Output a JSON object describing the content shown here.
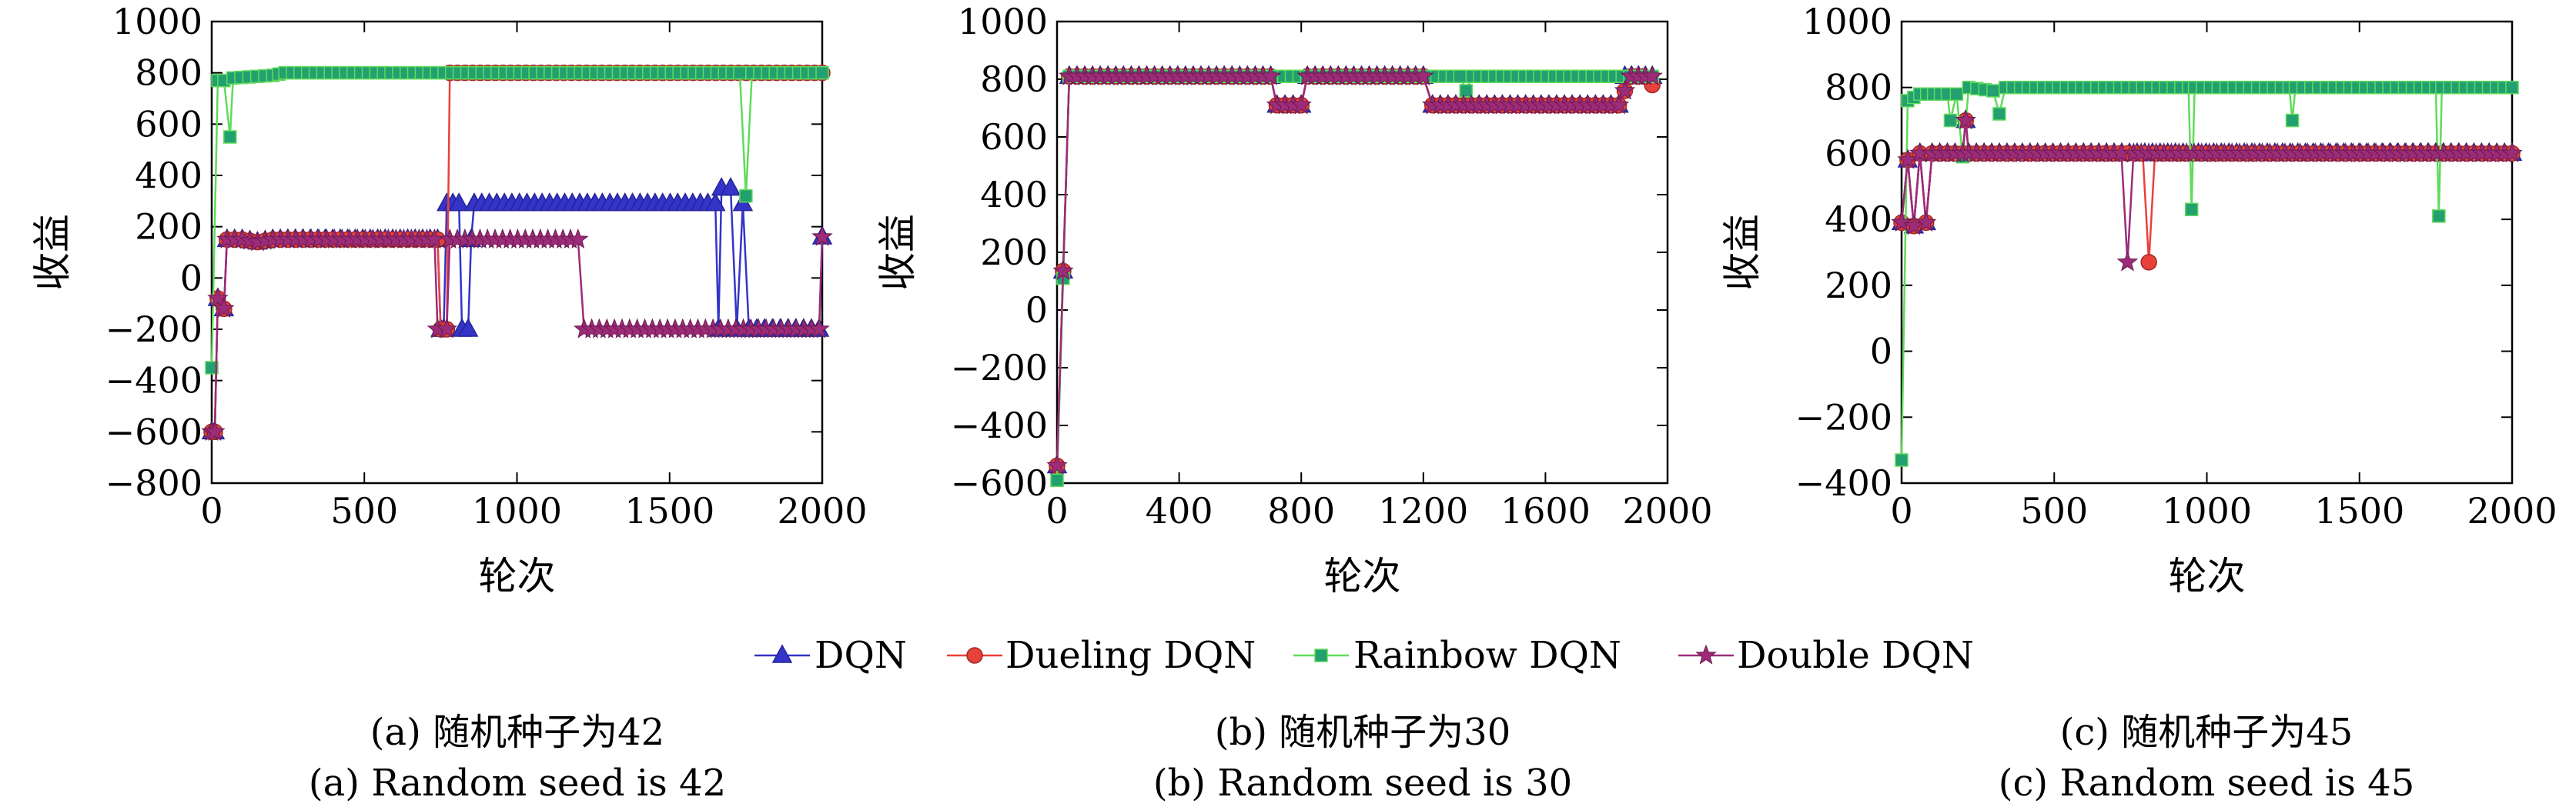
{
  "legend": {
    "entries": [
      {
        "label": "DQN",
        "color": "#3434c8",
        "marker": "triangle"
      },
      {
        "label": "Dueling DQN",
        "color": "#e8413a",
        "marker": "circle"
      },
      {
        "label": "Rainbow DQN",
        "color": "#5fdc5a",
        "marker": "square"
      },
      {
        "label": "Double DQN",
        "color": "#9c2b78",
        "marker": "star"
      }
    ]
  },
  "chart_data": [
    {
      "type": "line",
      "ylabel": "收益",
      "xlabel": "轮次",
      "caption_cn": "(a) 随机种子为42",
      "caption_en": "(a) Random seed is 42",
      "xlim": [
        0,
        2000
      ],
      "ylim": [
        -800,
        1000
      ],
      "xticks": [
        0,
        500,
        1000,
        1500,
        2000
      ],
      "yticks": [
        -800,
        -600,
        -400,
        -200,
        0,
        200,
        400,
        600,
        800,
        1000
      ],
      "series": [
        {
          "name": "DQN",
          "points": [
            [
              0,
              -600
            ],
            [
              10,
              -600
            ],
            [
              20,
              -80
            ],
            [
              40,
              -120
            ],
            [
              50,
              150
            ],
            [
              100,
              150
            ],
            [
              150,
              140
            ],
            [
              200,
              150
            ],
            [
              740,
              150
            ],
            [
              750,
              -200
            ],
            [
              760,
              -200
            ],
            [
              770,
              290
            ],
            [
              810,
              290
            ],
            [
              820,
              -200
            ],
            [
              840,
              -200
            ],
            [
              850,
              150
            ],
            [
              860,
              290
            ],
            [
              1650,
              290
            ],
            [
              1660,
              -200
            ],
            [
              1670,
              350
            ],
            [
              1700,
              350
            ],
            [
              1720,
              -200
            ],
            [
              1740,
              290
            ],
            [
              1760,
              -200
            ],
            [
              1990,
              -200
            ],
            [
              2000,
              160
            ]
          ]
        },
        {
          "name": "Dueling DQN",
          "points": [
            [
              0,
              -600
            ],
            [
              10,
              -600
            ],
            [
              20,
              -80
            ],
            [
              40,
              -120
            ],
            [
              50,
              150
            ],
            [
              100,
              150
            ],
            [
              150,
              140
            ],
            [
              200,
              150
            ],
            [
              740,
              150
            ],
            [
              750,
              -200
            ],
            [
              770,
              -200
            ],
            [
              780,
              800
            ],
            [
              2000,
              800
            ]
          ]
        },
        {
          "name": "Rainbow DQN",
          "points": [
            [
              0,
              -350
            ],
            [
              20,
              770
            ],
            [
              40,
              770
            ],
            [
              60,
              550
            ],
            [
              70,
              780
            ],
            [
              200,
              790
            ],
            [
              240,
              800
            ],
            [
              1730,
              800
            ],
            [
              1750,
              320
            ],
            [
              1770,
              800
            ],
            [
              2000,
              800
            ]
          ]
        },
        {
          "name": "Double DQN",
          "points": [
            [
              0,
              -600
            ],
            [
              10,
              -600
            ],
            [
              20,
              -80
            ],
            [
              40,
              -120
            ],
            [
              50,
              150
            ],
            [
              100,
              150
            ],
            [
              150,
              140
            ],
            [
              200,
              150
            ],
            [
              730,
              150
            ],
            [
              740,
              -200
            ],
            [
              770,
              -200
            ],
            [
              780,
              150
            ],
            [
              1200,
              150
            ],
            [
              1220,
              -200
            ],
            [
              1990,
              -200
            ],
            [
              2000,
              160
            ]
          ]
        }
      ]
    },
    {
      "type": "line",
      "ylabel": "收益",
      "xlabel": "轮次",
      "caption_cn": "(b) 随机种子为30",
      "caption_en": "(b) Random seed is 30",
      "xlim": [
        0,
        2000
      ],
      "ylim": [
        -600,
        1000
      ],
      "xticks": [
        0,
        400,
        800,
        1200,
        1600,
        2000
      ],
      "yticks": [
        -600,
        -400,
        -200,
        0,
        200,
        400,
        600,
        800,
        1000
      ],
      "series": [
        {
          "name": "DQN",
          "points": [
            [
              0,
              -540
            ],
            [
              40,
              810
            ],
            [
              700,
              810
            ],
            [
              720,
              710
            ],
            [
              800,
              710
            ],
            [
              820,
              810
            ],
            [
              1200,
              810
            ],
            [
              1230,
              710
            ],
            [
              1840,
              710
            ],
            [
              1860,
              810
            ],
            [
              1950,
              810
            ]
          ]
        },
        {
          "name": "Dueling DQN",
          "points": [
            [
              0,
              -540
            ],
            [
              40,
              810
            ],
            [
              700,
              810
            ],
            [
              720,
              710
            ],
            [
              800,
              710
            ],
            [
              820,
              810
            ],
            [
              1200,
              810
            ],
            [
              1230,
              710
            ],
            [
              1840,
              710
            ],
            [
              1880,
              810
            ],
            [
              1920,
              810
            ],
            [
              1950,
              780
            ]
          ]
        },
        {
          "name": "Rainbow DQN",
          "points": [
            [
              0,
              -590
            ],
            [
              40,
              810
            ],
            [
              1320,
              810
            ],
            [
              1340,
              760
            ],
            [
              1360,
              810
            ],
            [
              1950,
              810
            ]
          ]
        },
        {
          "name": "Double DQN",
          "points": [
            [
              0,
              -540
            ],
            [
              40,
              810
            ],
            [
              700,
              810
            ],
            [
              720,
              710
            ],
            [
              800,
              710
            ],
            [
              820,
              810
            ],
            [
              1200,
              810
            ],
            [
              1230,
              710
            ],
            [
              1840,
              710
            ],
            [
              1880,
              810
            ],
            [
              1950,
              810
            ]
          ]
        }
      ]
    },
    {
      "type": "line",
      "ylabel": "收益",
      "xlabel": "轮次",
      "caption_cn": "(c) 随机种子为45",
      "caption_en": "(c) Random seed is 45",
      "xlim": [
        0,
        2000
      ],
      "ylim": [
        -400,
        1000
      ],
      "xticks": [
        0,
        500,
        1000,
        1500,
        2000
      ],
      "yticks": [
        -400,
        -200,
        0,
        200,
        400,
        600,
        800,
        1000
      ],
      "series": [
        {
          "name": "DQN",
          "points": [
            [
              0,
              390
            ],
            [
              20,
              580
            ],
            [
              40,
              380
            ],
            [
              60,
              600
            ],
            [
              80,
              390
            ],
            [
              100,
              600
            ],
            [
              200,
              600
            ],
            [
              210,
              700
            ],
            [
              220,
              600
            ],
            [
              2000,
              600
            ]
          ]
        },
        {
          "name": "Dueling DQN",
          "points": [
            [
              0,
              390
            ],
            [
              20,
              580
            ],
            [
              40,
              380
            ],
            [
              60,
              600
            ],
            [
              80,
              390
            ],
            [
              100,
              600
            ],
            [
              200,
              600
            ],
            [
              210,
              700
            ],
            [
              220,
              600
            ],
            [
              790,
              600
            ],
            [
              810,
              270
            ],
            [
              830,
              600
            ],
            [
              2000,
              600
            ]
          ]
        },
        {
          "name": "Rainbow DQN",
          "points": [
            [
              0,
              -330
            ],
            [
              20,
              760
            ],
            [
              60,
              780
            ],
            [
              150,
              780
            ],
            [
              160,
              700
            ],
            [
              180,
              780
            ],
            [
              200,
              590
            ],
            [
              220,
              800
            ],
            [
              300,
              790
            ],
            [
              320,
              720
            ],
            [
              340,
              800
            ],
            [
              940,
              800
            ],
            [
              950,
              430
            ],
            [
              960,
              800
            ],
            [
              1270,
              800
            ],
            [
              1280,
              700
            ],
            [
              1290,
              800
            ],
            [
              1750,
              800
            ],
            [
              1760,
              410
            ],
            [
              1770,
              800
            ],
            [
              2000,
              800
            ]
          ]
        },
        {
          "name": "Double DQN",
          "points": [
            [
              0,
              390
            ],
            [
              20,
              580
            ],
            [
              40,
              380
            ],
            [
              60,
              600
            ],
            [
              80,
              390
            ],
            [
              100,
              600
            ],
            [
              200,
              600
            ],
            [
              210,
              700
            ],
            [
              220,
              600
            ],
            [
              720,
              600
            ],
            [
              740,
              270
            ],
            [
              760,
              600
            ],
            [
              2000,
              600
            ]
          ]
        }
      ]
    }
  ]
}
